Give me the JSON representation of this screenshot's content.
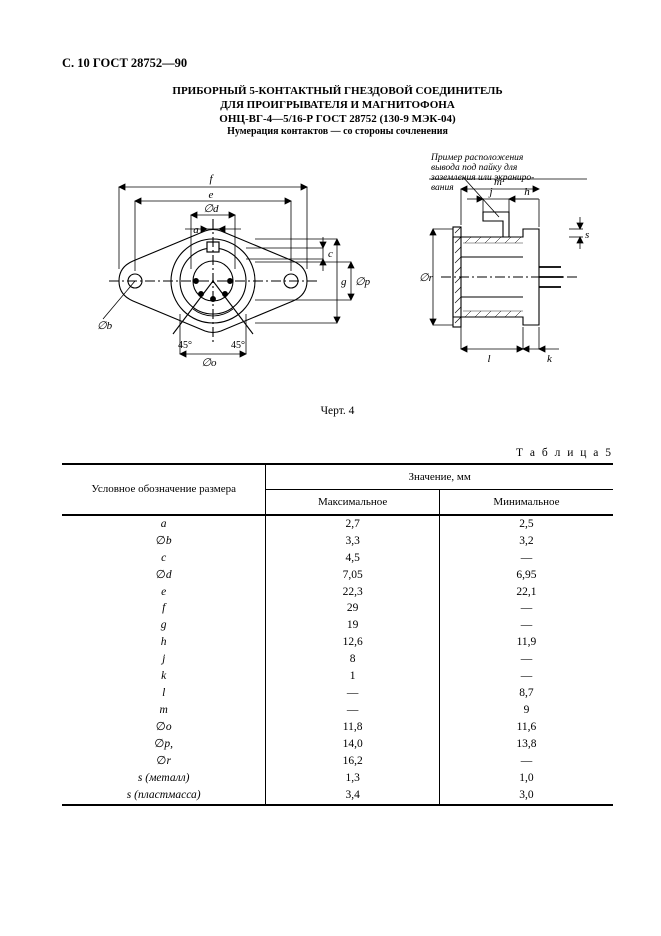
{
  "page_header": "С. 10 ГОСТ 28752—90",
  "title": {
    "line1": "ПРИБОРНЫЙ 5-КОНТАКТНЫЙ ГНЕЗДОВОЙ СОЕДИНИТЕЛЬ",
    "line2": "ДЛЯ ПРОИГРЫВАТЕЛЯ И МАГНИТОФОНА",
    "line3": "ОНЦ-ВГ-4—5/16-Р ГОСТ 28752 (130-9 МЭК-04)",
    "line4": "Нумерация контактов — со стороны сочленения"
  },
  "figure_caption": "Черт. 4",
  "figure": {
    "annotation_line1": "Пример расположения",
    "annotation_line2": "вывода под пайку для",
    "annotation_line3": "заземления или экраниро-",
    "annotation_line4": "вания",
    "dim_label_f": "f",
    "dim_label_e": "e",
    "dim_label_a": "a",
    "dim_label_b": "∅b",
    "dim_label_d": "∅d",
    "dim_label_o": "∅o",
    "dim_label_c": "c",
    "dim_label_p": "∅p",
    "dim_label_g": "g",
    "dim_label_r": "∅r",
    "dim_label_j": "j",
    "dim_label_h": "h",
    "dim_label_m": "m",
    "dim_label_s": "s",
    "dim_label_l": "l",
    "dim_label_k": "k",
    "angle_45_l": "45°",
    "angle_45_r": "45°"
  },
  "table_label": "Т а б л и ц а  5",
  "table": {
    "header_label": "Условное обозначение размера",
    "header_value": "Значение, мм",
    "header_max": "Максимальное",
    "header_min": "Минимальное",
    "rows": [
      {
        "label": "a",
        "max": "2,7",
        "min": "2,5"
      },
      {
        "label": "∅b",
        "max": "3,3",
        "min": "3,2"
      },
      {
        "label": "c",
        "max": "4,5",
        "min": "—"
      },
      {
        "label": "∅d",
        "max": "7,05",
        "min": "6,95"
      },
      {
        "label": "e",
        "max": "22,3",
        "min": "22,1"
      },
      {
        "label": "f",
        "max": "29",
        "min": "—"
      },
      {
        "label": "g",
        "max": "19",
        "min": "—"
      },
      {
        "label": "h",
        "max": "12,6",
        "min": "11,9"
      },
      {
        "label": "j",
        "max": "8",
        "min": "—"
      },
      {
        "label": "k",
        "max": "1",
        "min": "—"
      },
      {
        "label": "l",
        "max": "—",
        "min": "8,7"
      },
      {
        "label": "m",
        "max": "—",
        "min": "9"
      },
      {
        "label": "∅o",
        "max": "11,8",
        "min": "11,6"
      },
      {
        "label": "∅p,",
        "max": "14,0",
        "min": "13,8"
      },
      {
        "label": "∅r",
        "max": "16,2",
        "min": "—"
      },
      {
        "label": "s (металл)",
        "max": "1,3",
        "min": "1,0"
      },
      {
        "label": "s (пластмасса)",
        "max": "3,4",
        "min": "3,0"
      }
    ]
  }
}
